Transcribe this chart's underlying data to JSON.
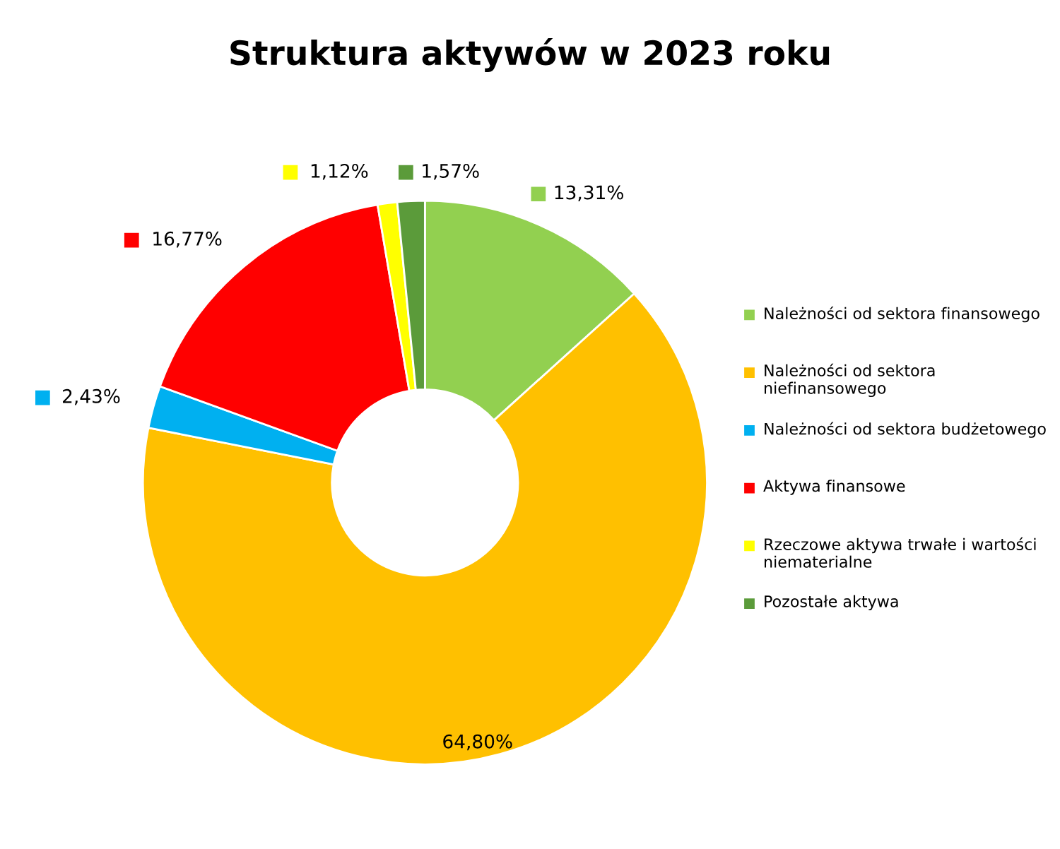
{
  "chart_data": {
    "type": "donut",
    "title": "Struktura aktywów w 2023 roku",
    "categories": [
      "Należności od sektora finansowego",
      "Należności od sektora niefinansowego",
      "Należności od sektora budżetowego",
      "Aktywa finansowe",
      "Rzeczowe aktywa trwałe i wartości niematerialne",
      "Pozostałe aktywa"
    ],
    "values": [
      13.31,
      64.8,
      2.43,
      16.77,
      1.12,
      1.57
    ],
    "value_labels": [
      "13,31%",
      "64,80%",
      "2,43%",
      "16,77%",
      "1,12%",
      "1,57%"
    ],
    "colors": [
      "#92d050",
      "#ffc000",
      "#00b0f0",
      "#ff0000",
      "#ffff00",
      "#5b9b3a"
    ],
    "legend": "right"
  }
}
